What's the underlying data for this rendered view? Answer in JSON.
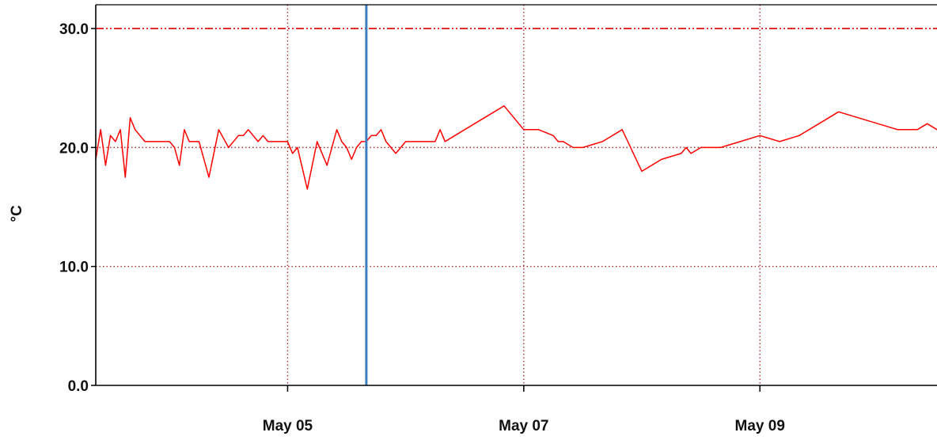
{
  "chart_data": {
    "type": "line",
    "title": "",
    "xlabel": "",
    "ylabel": "°C",
    "x_ticks": [
      {
        "label": "May 05",
        "day": 5
      },
      {
        "label": "May 07",
        "day": 7
      },
      {
        "label": "May 09",
        "day": 9
      }
    ],
    "y_ticks": [
      {
        "label": "0.0",
        "value": 0
      },
      {
        "label": "10.0",
        "value": 10
      },
      {
        "label": "20.0",
        "value": 20
      },
      {
        "label": "30.0",
        "value": 30
      }
    ],
    "xlim": [
      "May 03 09:00",
      "May 10 12:00"
    ],
    "ylim": [
      0,
      32
    ],
    "grid": true,
    "threshold": {
      "value": 30,
      "color": "#e02020",
      "style": "dash-dot"
    },
    "marker": {
      "x": "May 05 16:00",
      "color": "#3a7fc4"
    },
    "series": [
      {
        "color": "#ff0000",
        "x": [
          "May 03 09:00",
          "May 03 10:00",
          "May 03 11:00",
          "May 03 12:00",
          "May 03 13:00",
          "May 03 14:00",
          "May 03 15:00",
          "May 03 16:00",
          "May 03 17:00",
          "May 03 18:00",
          "May 03 19:00",
          "May 03 20:00",
          "May 03 21:00",
          "May 03 22:00",
          "May 03 23:00",
          "May 04 00:00",
          "May 04 01:00",
          "May 04 02:00",
          "May 04 03:00",
          "May 04 04:00",
          "May 04 06:00",
          "May 04 08:00",
          "May 04 10:00",
          "May 04 12:00",
          "May 04 14:00",
          "May 04 15:00",
          "May 04 16:00",
          "May 04 17:00",
          "May 04 18:00",
          "May 04 19:00",
          "May 04 20:00",
          "May 04 21:00",
          "May 04 22:00",
          "May 04 23:00",
          "May 05 00:00",
          "May 05 01:00",
          "May 05 02:00",
          "May 05 04:00",
          "May 05 06:00",
          "May 05 08:00",
          "May 05 10:00",
          "May 05 11:00",
          "May 05 12:00",
          "May 05 13:00",
          "May 05 14:00",
          "May 05 15:00",
          "May 05 16:00",
          "May 05 17:00",
          "May 05 18:00",
          "May 05 19:00",
          "May 05 20:00",
          "May 05 22:00",
          "May 06 00:00",
          "May 06 03:00",
          "May 06 06:00",
          "May 06 07:00",
          "May 06 08:00",
          "May 06 10:00",
          "May 06 12:00",
          "May 06 16:00",
          "May 06 20:00",
          "May 07 00:00",
          "May 07 03:00",
          "May 07 06:00",
          "May 07 07:00",
          "May 07 08:00",
          "May 07 10:00",
          "May 07 12:00",
          "May 07 16:00",
          "May 07 20:00",
          "May 08 00:00",
          "May 08 04:00",
          "May 08 08:00",
          "May 08 09:00",
          "May 08 10:00",
          "May 08 12:00",
          "May 08 14:00",
          "May 08 16:00",
          "May 08 20:00",
          "May 09 00:00",
          "May 09 04:00",
          "May 09 08:00",
          "May 09 12:00",
          "May 09 16:00",
          "May 09 20:00",
          "May 10 00:00",
          "May 10 04:00",
          "May 10 08:00",
          "May 10 10:00",
          "May 10 12:00"
        ],
        "y": [
          19,
          21.5,
          18.5,
          21,
          20.5,
          21.5,
          17.5,
          22.5,
          21.5,
          21,
          20.5,
          20.5,
          20.5,
          20.5,
          20.5,
          20.5,
          20,
          18.5,
          21.5,
          20.5,
          20.5,
          17.5,
          21.5,
          20,
          21,
          21,
          21.5,
          21,
          20.5,
          21,
          20.5,
          20.5,
          20.5,
          20.5,
          20.5,
          19.5,
          20,
          16.5,
          20.5,
          18.5,
          21.5,
          20.5,
          20,
          19,
          20,
          20.5,
          20.5,
          21,
          21,
          21.5,
          20.5,
          19.5,
          20.5,
          20.5,
          20.5,
          21.5,
          20.5,
          21,
          21.5,
          22.5,
          23.5,
          21.5,
          21.5,
          21,
          20.5,
          20.5,
          20,
          20,
          20.5,
          21.5,
          18,
          19,
          19.5,
          20,
          19.5,
          20,
          20,
          20,
          20.5,
          21,
          20.5,
          21,
          22,
          23,
          22.5,
          22,
          21.5,
          21.5,
          22,
          21.5
        ]
      }
    ]
  }
}
